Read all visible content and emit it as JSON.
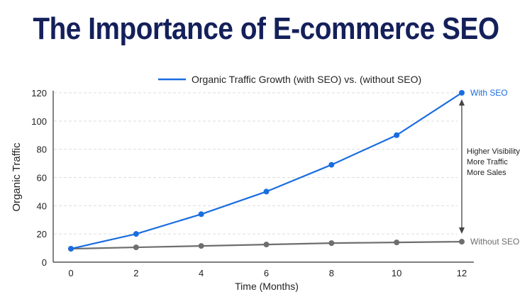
{
  "chart_data": {
    "type": "line",
    "title": "The Importance of E-commerce SEO",
    "legend_label": "Organic Traffic Growth (with SEO) vs. (without SEO)",
    "legend_position": "top",
    "xlabel": "Time (Months)",
    "ylabel": "Organic Traffic",
    "x": [
      0,
      2,
      4,
      6,
      8,
      10,
      12
    ],
    "xlim": [
      0,
      12
    ],
    "ylim": [
      0,
      120
    ],
    "xticks": [
      "0",
      "2",
      "4",
      "6",
      "8",
      "10",
      "12"
    ],
    "yticks": [
      "0",
      "20",
      "40",
      "60",
      "80",
      "100",
      "120"
    ],
    "grid": "horizontal dashed",
    "series": [
      {
        "name": "With SEO",
        "color": "#1a6de0",
        "values": [
          9.5,
          20,
          34,
          50,
          69,
          90,
          120
        ]
      },
      {
        "name": "Without SEO",
        "color": "#6e6e6e",
        "values": [
          9.5,
          10.5,
          11.5,
          12.5,
          13.5,
          14,
          14.5
        ]
      }
    ],
    "annotation": [
      "Higher Visibility",
      "More Traffic",
      "More Sales"
    ]
  }
}
